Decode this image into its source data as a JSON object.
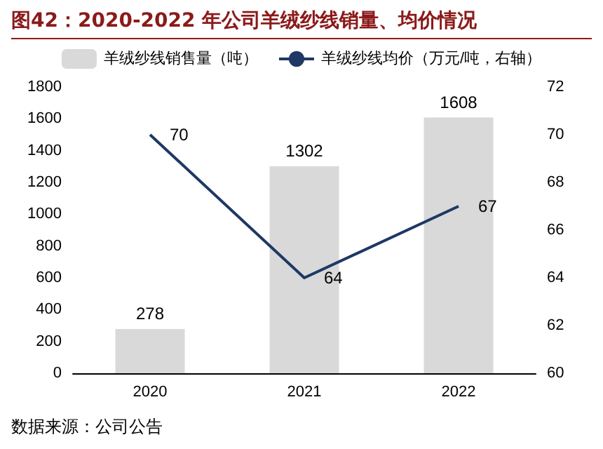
{
  "chart_data": {
    "type": "bar",
    "title": "图42：2020-2022 年公司羊绒纱线销量、均价情况",
    "annotations": [
      "数据来源：公司公告"
    ],
    "categories": [
      "2020",
      "2021",
      "2022"
    ],
    "series": [
      {
        "name": "羊绒纱线销售量（吨）",
        "color": "#d9d9d9",
        "values": [
          278,
          1302,
          1608
        ]
      },
      {
        "name": "羊绒纱线均价（万元/吨，右轴）",
        "type": "line",
        "axis": "y2",
        "color": "#1f3864",
        "values": [
          70,
          64,
          67
        ]
      }
    ],
    "ylim": [
      0,
      1800
    ],
    "yticks": [
      0,
      200,
      400,
      600,
      800,
      1000,
      1200,
      1400,
      1600,
      1800
    ],
    "y2lim": [
      60,
      72
    ],
    "y2ticks": [
      60,
      62,
      64,
      66,
      68,
      70,
      72
    ],
    "data_labels": true,
    "grid": false,
    "legend": "top",
    "marker": "none",
    "line_style": "solid"
  }
}
